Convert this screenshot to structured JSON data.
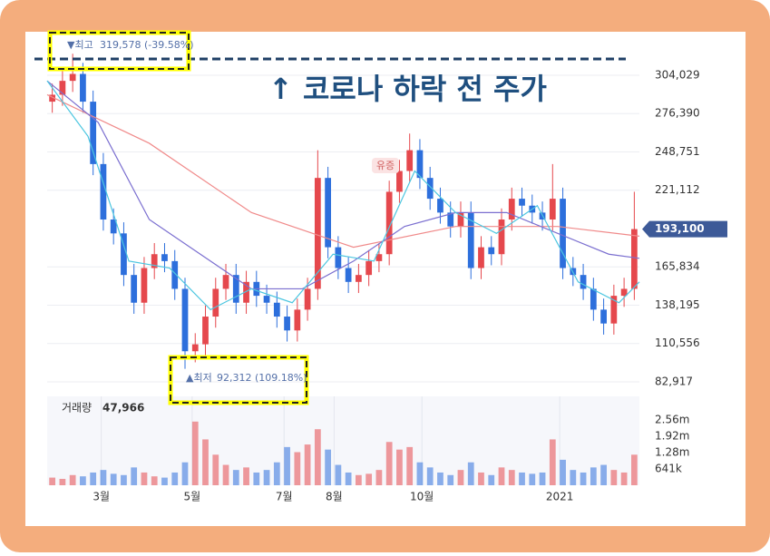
{
  "chart_data": {
    "type": "candlestick",
    "title": "↑ 코로나 하락 전 주가",
    "annotations": {
      "max_marker": "▼최고",
      "max_text": "319,578 (-39.58%)",
      "min_marker": "▲최저",
      "min_text": "92,312 (109.18%)",
      "event": "유증"
    },
    "volume_label": "거래량",
    "volume_last": "47,966",
    "last_price": {
      "value": 193100,
      "label": "193,100"
    },
    "open": [
      285000,
      290000,
      300000,
      305000,
      285000,
      240000,
      200000,
      190000,
      160000,
      140000,
      165000,
      175000,
      170000,
      150000,
      105000,
      110000,
      130000,
      150000,
      160000,
      140000,
      155000,
      145000,
      140000,
      130000,
      120000,
      135000,
      150000,
      230000,
      180000,
      165000,
      155000,
      160000,
      170000,
      175000,
      220000,
      235000,
      250000,
      230000,
      215000,
      205000,
      195000,
      205000,
      165000,
      180000,
      175000,
      200000,
      215000,
      210000,
      205000,
      200000,
      215000,
      165000,
      160000,
      150000,
      135000,
      125000,
      145000,
      150000
    ],
    "high": [
      298000,
      308000,
      319578,
      313000,
      293000,
      248000,
      208000,
      198000,
      168000,
      173000,
      183000,
      183000,
      178000,
      158000,
      118000,
      138000,
      158000,
      168000,
      168000,
      163000,
      163000,
      153000,
      148000,
      138000,
      143000,
      158000,
      250000,
      238000,
      188000,
      173000,
      168000,
      178000,
      183000,
      228000,
      243000,
      262000,
      258000,
      238000,
      223000,
      213000,
      213000,
      213000,
      188000,
      188000,
      208000,
      223000,
      223000,
      218000,
      213000,
      240000,
      223000,
      173000,
      168000,
      158000,
      143000,
      153000,
      158000,
      220000
    ],
    "low": [
      277000,
      282000,
      292000,
      277000,
      232000,
      192000,
      182000,
      152000,
      132000,
      132000,
      157000,
      162000,
      142000,
      92312,
      97000,
      102000,
      122000,
      142000,
      132000,
      132000,
      137000,
      132000,
      122000,
      112000,
      112000,
      127000,
      142000,
      172000,
      157000,
      147000,
      147000,
      152000,
      162000,
      167000,
      212000,
      227000,
      222000,
      207000,
      197000,
      187000,
      187000,
      157000,
      157000,
      167000,
      167000,
      192000,
      202000,
      197000,
      192000,
      192000,
      157000,
      152000,
      142000,
      127000,
      117000,
      117000,
      137000,
      142000
    ],
    "close": [
      290000,
      300000,
      305000,
      285000,
      240000,
      200000,
      190000,
      160000,
      140000,
      165000,
      175000,
      170000,
      150000,
      105000,
      110000,
      130000,
      150000,
      160000,
      140000,
      155000,
      145000,
      140000,
      130000,
      120000,
      135000,
      150000,
      230000,
      180000,
      165000,
      155000,
      160000,
      170000,
      175000,
      220000,
      235000,
      250000,
      230000,
      215000,
      205000,
      195000,
      205000,
      165000,
      180000,
      175000,
      200000,
      215000,
      210000,
      205000,
      200000,
      215000,
      165000,
      160000,
      150000,
      135000,
      125000,
      145000,
      150000,
      193100
    ],
    "volume": [
      300000,
      250000,
      400000,
      350000,
      500000,
      600000,
      450000,
      400000,
      700000,
      500000,
      350000,
      300000,
      500000,
      900000,
      2500000,
      1800000,
      1200000,
      800000,
      600000,
      700000,
      500000,
      600000,
      900000,
      1500000,
      1300000,
      1600000,
      2200000,
      1400000,
      800000,
      500000,
      400000,
      450000,
      600000,
      1700000,
      1400000,
      1500000,
      900000,
      700000,
      500000,
      400000,
      600000,
      900000,
      500000,
      400000,
      700000,
      600000,
      500000,
      450000,
      500000,
      1800000,
      1000000,
      600000,
      500000,
      700000,
      800000,
      600000,
      500000,
      1200000
    ],
    "up_color": "#e5484d",
    "down_color": "#2d6fdc",
    "averages": [
      {
        "color": "#f08a8a",
        "x": [
          0,
          10,
          20,
          30,
          40,
          50,
          58
        ],
        "values": [
          290000,
          255000,
          205000,
          180000,
          195000,
          195000,
          188000
        ]
      },
      {
        "color": "#7b6fd0",
        "x": [
          0,
          5,
          10,
          15,
          20,
          25,
          30,
          35,
          40,
          45,
          50,
          55,
          58
        ],
        "values": [
          300000,
          270000,
          200000,
          175000,
          150000,
          150000,
          170000,
          195000,
          205000,
          205000,
          190000,
          175000,
          172000
        ]
      },
      {
        "color": "#4cc6e0",
        "x": [
          0,
          4,
          8,
          12,
          16,
          20,
          24,
          28,
          32,
          36,
          40,
          44,
          48,
          52,
          56,
          58
        ],
        "values": [
          300000,
          260000,
          170000,
          165000,
          135000,
          150000,
          140000,
          175000,
          170000,
          235000,
          205000,
          190000,
          210000,
          155000,
          140000,
          155000
        ]
      }
    ],
    "xlim": [
      0,
      58
    ],
    "xticks": [
      {
        "value": 5.3,
        "label": "3월"
      },
      {
        "value": 14.2,
        "label": "5월"
      },
      {
        "value": 23.2,
        "label": "7월"
      },
      {
        "value": 28.1,
        "label": "8월"
      },
      {
        "value": 36.7,
        "label": "10월"
      },
      {
        "value": 50.2,
        "label": "2021"
      }
    ],
    "ylim": [
      75721,
      332157
    ],
    "yticks": [
      {
        "value": 82917,
        "label": "82,917"
      },
      {
        "value": 110556,
        "label": "110,556"
      },
      {
        "value": 138195,
        "label": "138,195"
      },
      {
        "value": 165834,
        "label": "165,834"
      },
      {
        "value": 221112,
        "label": "221,112"
      },
      {
        "value": 248751,
        "label": "248,751"
      },
      {
        "value": 276390,
        "label": "276,390"
      },
      {
        "value": 304029,
        "label": "304,029"
      }
    ],
    "vol_ylim": [
      0,
      3490000
    ],
    "vol_yticks": [
      {
        "value": 641000,
        "label": "641k"
      },
      {
        "value": 1280000,
        "label": "1.28m"
      },
      {
        "value": 1920000,
        "label": "1.92m"
      },
      {
        "value": 2560000,
        "label": "2.56m"
      }
    ]
  }
}
